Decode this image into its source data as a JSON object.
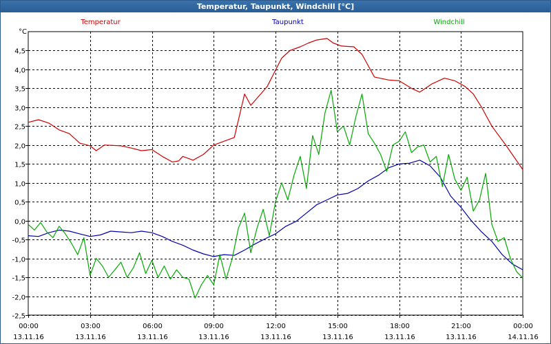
{
  "window": {
    "title": "Temperatur, Taupunkt, Windchill [°C]"
  },
  "chart_data": {
    "type": "line",
    "title": "Temperatur, Taupunkt, Windchill [°C]",
    "y_unit": "°C",
    "ylim": [
      -2.5,
      5.0
    ],
    "xlim_hours": [
      0,
      24
    ],
    "grid": true,
    "legend_placement": "top",
    "y_ticks": [
      "4,5",
      "4,0",
      "3,5",
      "3,0",
      "2,5",
      "2,0",
      "1,5",
      "1,0",
      "0,5",
      "0,0",
      "-0,5",
      "-1,0",
      "-1,5",
      "-2,0",
      "-2,5"
    ],
    "y_tick_values": [
      4.5,
      4.0,
      3.5,
      3.0,
      2.5,
      2.0,
      1.5,
      1.0,
      0.5,
      0.0,
      -0.5,
      -1.0,
      -1.5,
      -2.0,
      -2.5
    ],
    "x_ticks": [
      {
        "hour": 0,
        "time": "00:00",
        "date": "13.11.16"
      },
      {
        "hour": 3,
        "time": "03:00",
        "date": "13.11.16"
      },
      {
        "hour": 6,
        "time": "06:00",
        "date": "13.11.16"
      },
      {
        "hour": 9,
        "time": "09:00",
        "date": "13.11.16"
      },
      {
        "hour": 12,
        "time": "12:00",
        "date": "13.11.16"
      },
      {
        "hour": 15,
        "time": "15:00",
        "date": "13.11.16"
      },
      {
        "hour": 18,
        "time": "18:00",
        "date": "13.11.16"
      },
      {
        "hour": 21,
        "time": "21:00",
        "date": "13.11.16"
      },
      {
        "hour": 24,
        "time": "00:00",
        "date": "14.11.16"
      }
    ],
    "series": [
      {
        "name": "Temperatur",
        "color": "#cc0000",
        "points": [
          [
            0,
            2.6
          ],
          [
            0.5,
            2.67
          ],
          [
            1,
            2.58
          ],
          [
            1.5,
            2.4
          ],
          [
            2,
            2.3
          ],
          [
            2.5,
            2.05
          ],
          [
            3,
            1.98
          ],
          [
            3.3,
            1.85
          ],
          [
            3.7,
            2.0
          ],
          [
            4.5,
            1.98
          ],
          [
            5,
            1.92
          ],
          [
            5.5,
            1.85
          ],
          [
            6,
            1.88
          ],
          [
            6.5,
            1.7
          ],
          [
            7,
            1.55
          ],
          [
            7.3,
            1.58
          ],
          [
            7.5,
            1.7
          ],
          [
            8,
            1.6
          ],
          [
            8.5,
            1.75
          ],
          [
            9,
            2.0
          ],
          [
            9.5,
            2.1
          ],
          [
            10,
            2.2
          ],
          [
            10.5,
            3.35
          ],
          [
            10.8,
            3.05
          ],
          [
            11.2,
            3.3
          ],
          [
            11.6,
            3.55
          ],
          [
            12,
            3.98
          ],
          [
            12.3,
            4.3
          ],
          [
            12.7,
            4.5
          ],
          [
            13.2,
            4.6
          ],
          [
            13.6,
            4.7
          ],
          [
            14,
            4.78
          ],
          [
            14.5,
            4.82
          ],
          [
            14.8,
            4.7
          ],
          [
            15.2,
            4.62
          ],
          [
            15.8,
            4.6
          ],
          [
            16.2,
            4.4
          ],
          [
            16.8,
            3.8
          ],
          [
            17.5,
            3.72
          ],
          [
            18,
            3.7
          ],
          [
            18.6,
            3.5
          ],
          [
            19,
            3.4
          ],
          [
            19.6,
            3.62
          ],
          [
            20.2,
            3.77
          ],
          [
            20.7,
            3.7
          ],
          [
            21.2,
            3.55
          ],
          [
            21.6,
            3.35
          ],
          [
            22,
            3.0
          ],
          [
            22.5,
            2.5
          ],
          [
            23.2,
            1.98
          ],
          [
            24,
            1.35
          ]
        ]
      },
      {
        "name": "Taupunkt",
        "color": "#0000aa",
        "points": [
          [
            0,
            -0.4
          ],
          [
            0.5,
            -0.42
          ],
          [
            1,
            -0.32
          ],
          [
            1.5,
            -0.25
          ],
          [
            2,
            -0.28
          ],
          [
            2.5,
            -0.35
          ],
          [
            3,
            -0.42
          ],
          [
            3.5,
            -0.38
          ],
          [
            4,
            -0.28
          ],
          [
            4.5,
            -0.3
          ],
          [
            5,
            -0.32
          ],
          [
            5.5,
            -0.28
          ],
          [
            6,
            -0.32
          ],
          [
            6.5,
            -0.42
          ],
          [
            7,
            -0.55
          ],
          [
            7.5,
            -0.65
          ],
          [
            8,
            -0.78
          ],
          [
            8.5,
            -0.88
          ],
          [
            9,
            -0.95
          ],
          [
            9.5,
            -0.9
          ],
          [
            10,
            -0.92
          ],
          [
            10.5,
            -0.78
          ],
          [
            11,
            -0.62
          ],
          [
            11.5,
            -0.48
          ],
          [
            12,
            -0.35
          ],
          [
            12.5,
            -0.15
          ],
          [
            13,
            -0.02
          ],
          [
            13.5,
            0.2
          ],
          [
            14,
            0.42
          ],
          [
            14.5,
            0.55
          ],
          [
            15,
            0.68
          ],
          [
            15.5,
            0.72
          ],
          [
            16,
            0.85
          ],
          [
            16.5,
            1.05
          ],
          [
            17,
            1.2
          ],
          [
            17.5,
            1.4
          ],
          [
            18,
            1.5
          ],
          [
            18.5,
            1.52
          ],
          [
            19,
            1.6
          ],
          [
            19.5,
            1.45
          ],
          [
            20,
            1.15
          ],
          [
            20.5,
            0.65
          ],
          [
            21,
            0.35
          ],
          [
            21.5,
            0.0
          ],
          [
            22,
            -0.3
          ],
          [
            22.5,
            -0.55
          ],
          [
            23,
            -0.9
          ],
          [
            23.5,
            -1.15
          ],
          [
            24,
            -1.3
          ]
        ]
      },
      {
        "name": "Windchill",
        "color": "#00aa00",
        "points": [
          [
            0,
            -0.1
          ],
          [
            0.3,
            -0.25
          ],
          [
            0.6,
            -0.05
          ],
          [
            0.9,
            -0.3
          ],
          [
            1.2,
            -0.45
          ],
          [
            1.5,
            -0.15
          ],
          [
            1.8,
            -0.35
          ],
          [
            2.1,
            -0.6
          ],
          [
            2.4,
            -0.9
          ],
          [
            2.7,
            -0.45
          ],
          [
            3,
            -1.45
          ],
          [
            3.3,
            -1.0
          ],
          [
            3.6,
            -1.2
          ],
          [
            3.9,
            -1.5
          ],
          [
            4.2,
            -1.3
          ],
          [
            4.5,
            -1.1
          ],
          [
            4.8,
            -1.5
          ],
          [
            5.1,
            -1.25
          ],
          [
            5.4,
            -0.85
          ],
          [
            5.7,
            -1.4
          ],
          [
            6,
            -1.05
          ],
          [
            6.3,
            -1.5
          ],
          [
            6.6,
            -1.2
          ],
          [
            6.9,
            -1.55
          ],
          [
            7.2,
            -1.3
          ],
          [
            7.5,
            -1.5
          ],
          [
            7.8,
            -1.55
          ],
          [
            8.1,
            -2.05
          ],
          [
            8.4,
            -1.7
          ],
          [
            8.7,
            -1.45
          ],
          [
            9,
            -1.7
          ],
          [
            9.3,
            -0.9
          ],
          [
            9.6,
            -1.55
          ],
          [
            9.9,
            -1.0
          ],
          [
            10.2,
            -0.2
          ],
          [
            10.5,
            0.2
          ],
          [
            10.8,
            -0.85
          ],
          [
            11.1,
            -0.2
          ],
          [
            11.4,
            0.3
          ],
          [
            11.7,
            -0.4
          ],
          [
            12,
            0.5
          ],
          [
            12.3,
            1.0
          ],
          [
            12.6,
            0.55
          ],
          [
            12.9,
            1.2
          ],
          [
            13.2,
            1.7
          ],
          [
            13.5,
            0.85
          ],
          [
            13.8,
            2.25
          ],
          [
            14.1,
            1.75
          ],
          [
            14.4,
            2.85
          ],
          [
            14.7,
            3.45
          ],
          [
            15,
            2.35
          ],
          [
            15.3,
            2.5
          ],
          [
            15.6,
            2.0
          ],
          [
            15.9,
            2.75
          ],
          [
            16.2,
            3.35
          ],
          [
            16.5,
            2.3
          ],
          [
            16.8,
            2.05
          ],
          [
            17.1,
            1.75
          ],
          [
            17.4,
            1.3
          ],
          [
            17.7,
            2.0
          ],
          [
            18,
            2.1
          ],
          [
            18.3,
            2.35
          ],
          [
            18.6,
            1.8
          ],
          [
            18.9,
            1.95
          ],
          [
            19.2,
            2.0
          ],
          [
            19.5,
            1.55
          ],
          [
            19.8,
            1.7
          ],
          [
            20.1,
            0.9
          ],
          [
            20.4,
            1.75
          ],
          [
            20.7,
            1.1
          ],
          [
            21,
            0.8
          ],
          [
            21.3,
            1.15
          ],
          [
            21.6,
            0.25
          ],
          [
            21.9,
            0.55
          ],
          [
            22.2,
            1.25
          ],
          [
            22.5,
            -0.1
          ],
          [
            22.8,
            -0.55
          ],
          [
            23.1,
            -0.45
          ],
          [
            23.4,
            -1.0
          ],
          [
            23.7,
            -1.35
          ],
          [
            24,
            -1.52
          ]
        ]
      }
    ]
  }
}
